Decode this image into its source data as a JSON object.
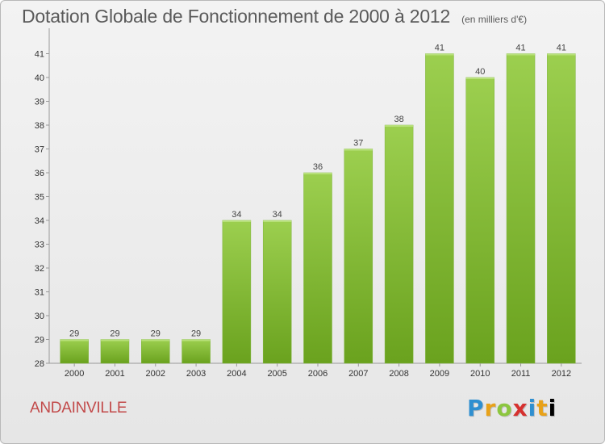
{
  "chart_data": {
    "type": "bar",
    "title": "Dotation Globale de Fonctionnement de 2000 à 2012",
    "unit_note": "(en milliers d'€)",
    "categories": [
      "2000",
      "2001",
      "2002",
      "2003",
      "2004",
      "2005",
      "2006",
      "2007",
      "2008",
      "2009",
      "2010",
      "2011",
      "2012"
    ],
    "values": [
      29,
      29,
      29,
      29,
      34,
      34,
      36,
      37,
      38,
      41,
      40,
      41,
      41
    ],
    "data_labels": [
      "29",
      "29",
      "29",
      "29",
      "34",
      "34",
      "36",
      "37",
      "38",
      "41",
      "40",
      "41",
      "41"
    ],
    "ylim": [
      28,
      42
    ],
    "yticks": [
      28,
      29,
      30,
      31,
      32,
      33,
      34,
      35,
      36,
      37,
      38,
      39,
      40,
      41
    ],
    "ytick_labels": [
      "28",
      "29",
      "30",
      "31",
      "32",
      "33",
      "34",
      "35",
      "36",
      "37",
      "38",
      "39",
      "40",
      "41"
    ],
    "xlabel": "",
    "ylabel": "",
    "grid": false,
    "legend": "none",
    "bar_color": "#8cc63f"
  },
  "commune": "ANDAINVILLE",
  "logo": {
    "letters": [
      "P",
      "r",
      "o",
      "x",
      "i",
      "t",
      "i"
    ]
  }
}
